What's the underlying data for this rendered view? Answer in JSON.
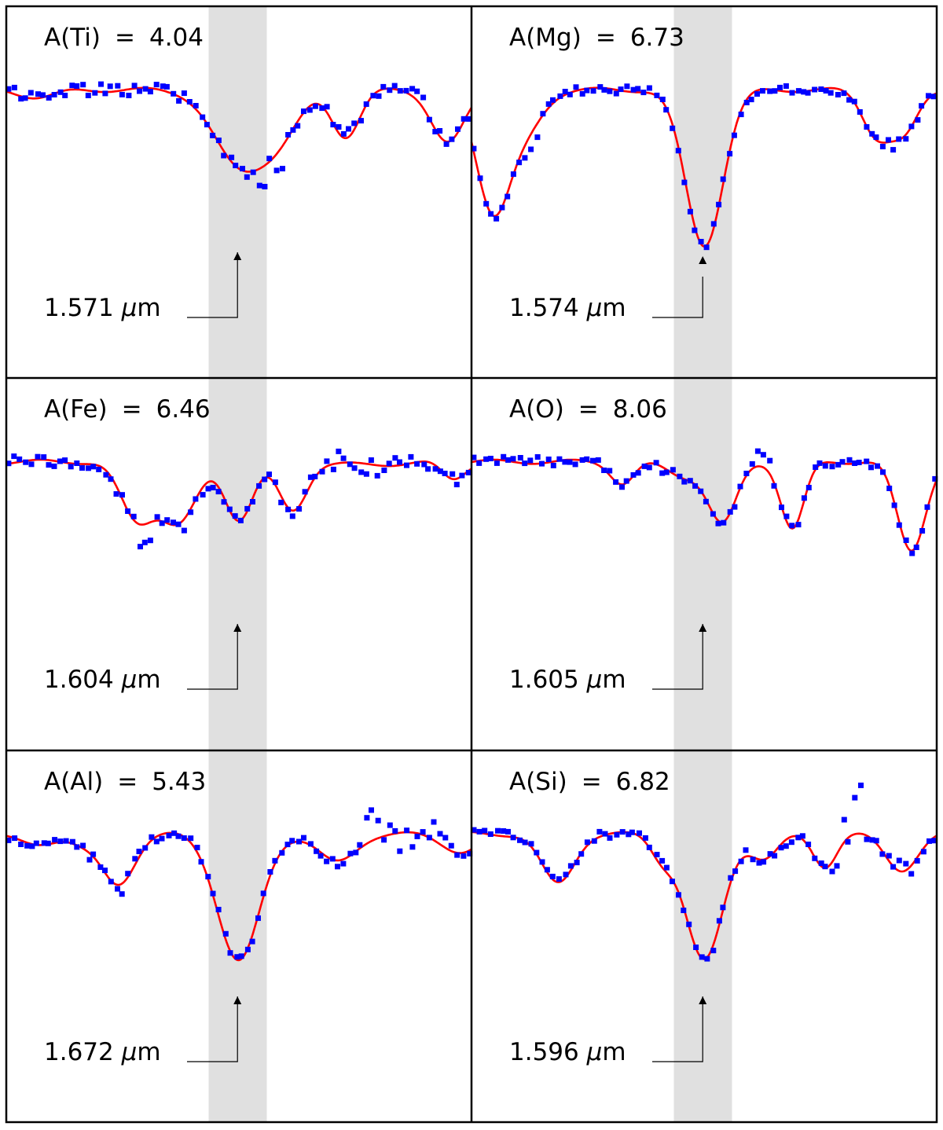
{
  "colors": {
    "model": "#ff0000",
    "observed": "#0000ff",
    "highlight": "#e0e0e0",
    "frame": "#000000"
  },
  "chart_data": [
    {
      "type": "line",
      "element": "Ti",
      "title": "A(Ti) = 4.04",
      "abundance": "4.04",
      "wavelength_label": "1.571 μm",
      "wavelength": "1.571",
      "unit": "μm",
      "series": [
        {
          "name": "",
          "kind": "model",
          "lines": [
            [
              0.5,
              0.21,
              0.055
            ],
            [
              0.59,
              0.11,
              0.045
            ],
            [
              0.73,
              0.13,
              0.03
            ],
            [
              0.95,
              0.15,
              0.035
            ],
            [
              0.07,
              0.02,
              0.04
            ]
          ]
        },
        {
          "name": "",
          "kind": "observed",
          "seed": 11,
          "noise": 0.018,
          "outliers": [
            [
              0.55,
              -0.07
            ],
            [
              0.58,
              -0.05
            ],
            [
              0.595,
              -0.06
            ],
            [
              0.35,
              0.02
            ],
            [
              0.88,
              0.02
            ],
            [
              0.9,
              0.03
            ]
          ]
        }
      ]
    },
    {
      "type": "line",
      "element": "Mg",
      "title": "A(Mg) = 6.73",
      "abundance": "6.73",
      "wavelength_label": "1.574 μm",
      "wavelength": "1.574",
      "unit": "μm",
      "series": [
        {
          "name": "",
          "kind": "model",
          "lines": [
            [
              0.045,
              0.32,
              0.035
            ],
            [
              0.11,
              0.12,
              0.04
            ],
            [
              0.5,
              0.44,
              0.04
            ],
            [
              0.87,
              0.12,
              0.03
            ],
            [
              0.93,
              0.12,
              0.03
            ]
          ]
        },
        {
          "name": "",
          "kind": "observed",
          "seed": 23,
          "noise": 0.012,
          "outliers": [
            [
              0.12,
              -0.04
            ],
            [
              0.14,
              -0.03
            ],
            [
              0.88,
              -0.02
            ],
            [
              0.91,
              -0.02
            ]
          ]
        }
      ]
    },
    {
      "type": "line",
      "element": "Fe",
      "title": "A(Fe) = 6.46",
      "abundance": "6.46",
      "wavelength_label": "1.604 μm",
      "wavelength": "1.604",
      "unit": "μm",
      "series": [
        {
          "name": "",
          "kind": "model",
          "lines": [
            [
              0.28,
              0.16,
              0.035
            ],
            [
              0.37,
              0.17,
              0.04
            ],
            [
              0.5,
              0.16,
              0.03
            ],
            [
              0.615,
              0.14,
              0.03
            ],
            [
              0.96,
              0.05,
              0.025
            ],
            [
              0.78,
              0.01,
              0.05
            ]
          ]
        },
        {
          "name": "",
          "kind": "observed",
          "seed": 37,
          "noise": 0.017,
          "outliers": [
            [
              0.29,
              -0.05
            ],
            [
              0.31,
              -0.04
            ],
            [
              0.38,
              -0.04
            ],
            [
              0.77,
              -0.03
            ],
            [
              0.8,
              -0.02
            ],
            [
              0.72,
              0.03
            ]
          ]
        }
      ]
    },
    {
      "type": "line",
      "element": "O",
      "title": "A(O) = 8.06",
      "abundance": "8.06",
      "wavelength_label": "1.605 μm",
      "wavelength": "1.605",
      "unit": "μm",
      "series": [
        {
          "name": "",
          "kind": "model",
          "lines": [
            [
              0.325,
              0.06,
              0.025
            ],
            [
              0.54,
              0.17,
              0.03
            ],
            [
              0.69,
              0.19,
              0.025
            ],
            [
              0.945,
              0.25,
              0.03
            ],
            [
              0.46,
              0.04,
              0.04
            ]
          ]
        },
        {
          "name": "",
          "kind": "observed",
          "seed": 53,
          "noise": 0.015,
          "outliers": [
            [
              0.62,
              0.03
            ],
            [
              0.64,
              0.02
            ]
          ]
        }
      ]
    },
    {
      "type": "line",
      "element": "Al",
      "title": "A(Al) = 5.43",
      "abundance": "5.43",
      "wavelength_label": "1.672 μm",
      "wavelength": "1.672",
      "unit": "μm",
      "series": [
        {
          "name": "",
          "kind": "model",
          "lines": [
            [
              0.24,
              0.14,
              0.035
            ],
            [
              0.5,
              0.36,
              0.045
            ],
            [
              0.71,
              0.08,
              0.04
            ],
            [
              0.06,
              0.03,
              0.04
            ],
            [
              0.17,
              0.03,
              0.03
            ],
            [
              0.98,
              0.05,
              0.04
            ]
          ]
        },
        {
          "name": "",
          "kind": "observed",
          "seed": 71,
          "noise": 0.014,
          "outliers": [
            [
              0.78,
              0.07
            ],
            [
              0.8,
              0.05
            ],
            [
              0.82,
              0.04
            ],
            [
              0.85,
              -0.04
            ],
            [
              0.87,
              -0.03
            ],
            [
              0.92,
              0.05
            ],
            [
              0.94,
              0.03
            ],
            [
              0.25,
              -0.04
            ]
          ]
        }
      ]
    },
    {
      "type": "line",
      "element": "Si",
      "title": "A(Si) = 6.82",
      "abundance": "6.82",
      "wavelength_label": "1.596 μm",
      "wavelength": "1.596",
      "unit": "μm",
      "series": [
        {
          "name": "",
          "kind": "model",
          "lines": [
            [
              0.185,
              0.14,
              0.035
            ],
            [
              0.41,
              0.06,
              0.025
            ],
            [
              0.5,
              0.36,
              0.04
            ],
            [
              0.63,
              0.07,
              0.03
            ],
            [
              0.76,
              0.09,
              0.025
            ],
            [
              0.925,
              0.1,
              0.035
            ]
          ]
        },
        {
          "name": "",
          "kind": "observed",
          "seed": 97,
          "noise": 0.014,
          "outliers": [
            [
              0.8,
              0.07
            ],
            [
              0.82,
              0.06
            ],
            [
              0.84,
              0.07
            ],
            [
              0.83,
              0.06
            ],
            [
              0.78,
              -0.03
            ],
            [
              0.92,
              0.02
            ],
            [
              0.95,
              -0.03
            ]
          ]
        }
      ]
    }
  ]
}
